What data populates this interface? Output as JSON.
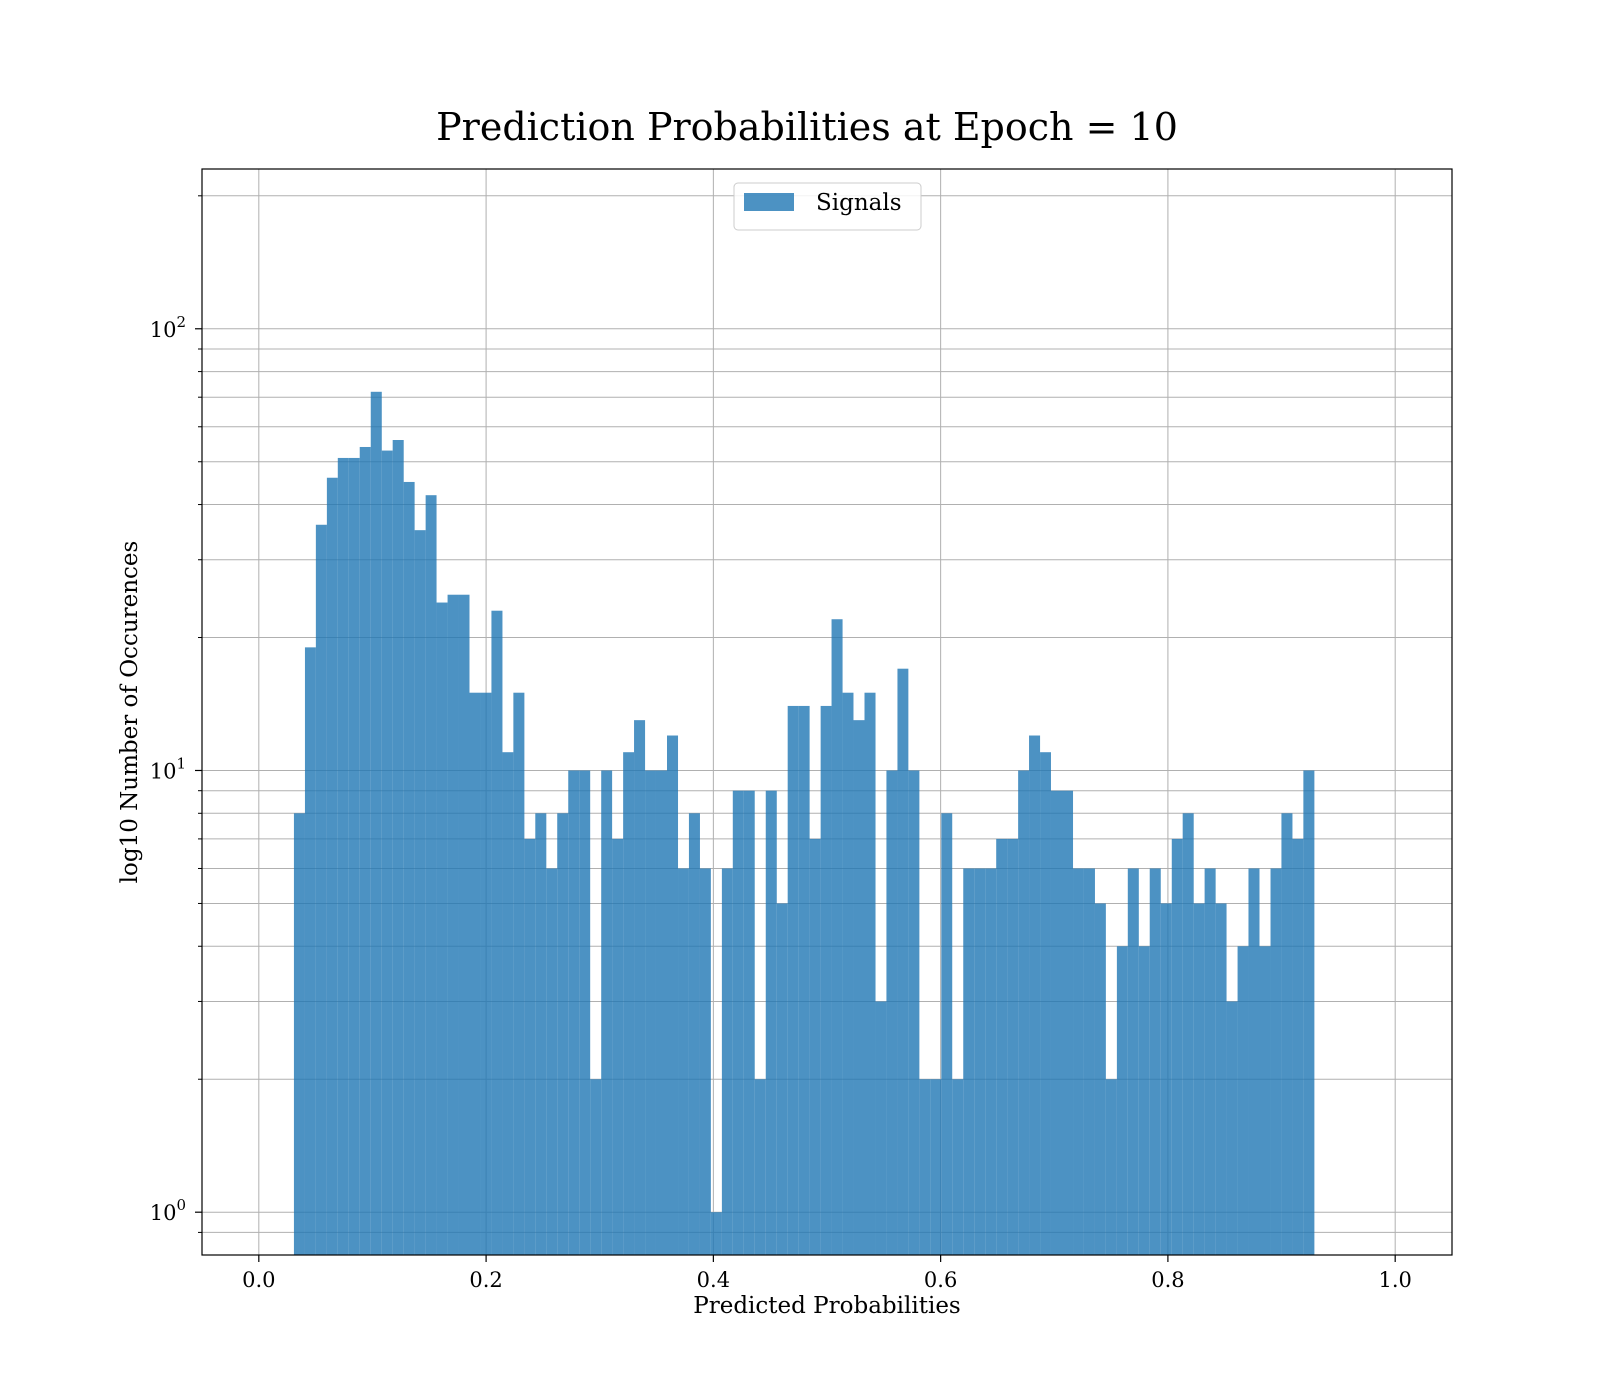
{
  "chart_data": {
    "type": "bar",
    "title": "Prediction Probabilities at Epoch = 10",
    "xlabel": "Predicted Probabilities",
    "ylabel": "log10 Number of Occurences",
    "yscale": "log",
    "xlim": [
      -0.05,
      1.05
    ],
    "ylim": [
      0.8,
      230
    ],
    "grid": true,
    "legend_position": "top-center",
    "x_ticks": [
      0.0,
      0.2,
      0.4,
      0.6,
      0.8,
      1.0
    ],
    "x_tick_labels": [
      "0.0",
      "0.2",
      "0.4",
      "0.6",
      "0.8",
      "1.0"
    ],
    "y_ticks": [
      1,
      10,
      100
    ],
    "y_tick_labels": [
      {
        "base": "10",
        "exp": "0"
      },
      {
        "base": "10",
        "exp": "1"
      },
      {
        "base": "10",
        "exp": "2"
      }
    ],
    "y_minor_ticks": [
      0.9,
      2,
      3,
      4,
      5,
      6,
      7,
      8,
      9,
      20,
      30,
      40,
      50,
      60,
      70,
      80,
      90,
      200
    ],
    "series": [
      {
        "name": "Signals",
        "color": "#1f77b4",
        "opacity": 0.8,
        "bins": [
          [
            0.0309,
            0.0406,
            8
          ],
          [
            0.0406,
            0.0502,
            19
          ],
          [
            0.0502,
            0.0599,
            36
          ],
          [
            0.0599,
            0.0695,
            46
          ],
          [
            0.0695,
            0.0792,
            51
          ],
          [
            0.0792,
            0.0888,
            51
          ],
          [
            0.0888,
            0.0985,
            54
          ],
          [
            0.0985,
            0.1082,
            72
          ],
          [
            0.1082,
            0.1178,
            53
          ],
          [
            0.1178,
            0.1275,
            56
          ],
          [
            0.1275,
            0.1371,
            45
          ],
          [
            0.1371,
            0.1468,
            35
          ],
          [
            0.1468,
            0.1564,
            42
          ],
          [
            0.1564,
            0.1661,
            24
          ],
          [
            0.1661,
            0.1757,
            25
          ],
          [
            0.1757,
            0.1854,
            25
          ],
          [
            0.1854,
            0.1951,
            15
          ],
          [
            0.1951,
            0.2047,
            15
          ],
          [
            0.2047,
            0.2144,
            23
          ],
          [
            0.2144,
            0.224,
            11
          ],
          [
            0.224,
            0.2337,
            15
          ],
          [
            0.2337,
            0.2433,
            7
          ],
          [
            0.2433,
            0.253,
            8
          ],
          [
            0.253,
            0.2626,
            6
          ],
          [
            0.2626,
            0.2723,
            8
          ],
          [
            0.2723,
            0.282,
            10
          ],
          [
            0.282,
            0.2916,
            10
          ],
          [
            0.2916,
            0.3013,
            2
          ],
          [
            0.3013,
            0.3109,
            10
          ],
          [
            0.3109,
            0.3206,
            7
          ],
          [
            0.3206,
            0.3302,
            11
          ],
          [
            0.3302,
            0.3399,
            13
          ],
          [
            0.3399,
            0.3495,
            10
          ],
          [
            0.3495,
            0.3592,
            10
          ],
          [
            0.3592,
            0.3689,
            12
          ],
          [
            0.3689,
            0.3785,
            6
          ],
          [
            0.3785,
            0.3882,
            8
          ],
          [
            0.3882,
            0.3978,
            6
          ],
          [
            0.3978,
            0.4075,
            1
          ],
          [
            0.4075,
            0.4171,
            6
          ],
          [
            0.4171,
            0.4268,
            9
          ],
          [
            0.4268,
            0.4364,
            9
          ],
          [
            0.4364,
            0.4461,
            2
          ],
          [
            0.4461,
            0.4558,
            9
          ],
          [
            0.4558,
            0.4654,
            5
          ],
          [
            0.4654,
            0.4751,
            14
          ],
          [
            0.4751,
            0.4847,
            14
          ],
          [
            0.4847,
            0.4944,
            7
          ],
          [
            0.4944,
            0.504,
            14
          ],
          [
            0.504,
            0.5137,
            22
          ],
          [
            0.5137,
            0.5233,
            15
          ],
          [
            0.5233,
            0.533,
            13
          ],
          [
            0.533,
            0.5427,
            15
          ],
          [
            0.5427,
            0.5523,
            3
          ],
          [
            0.5523,
            0.562,
            10
          ],
          [
            0.562,
            0.5716,
            17
          ],
          [
            0.5716,
            0.5813,
            10
          ],
          [
            0.5813,
            0.5909,
            2
          ],
          [
            0.5909,
            0.6006,
            2
          ],
          [
            0.6006,
            0.6102,
            8
          ],
          [
            0.6102,
            0.6199,
            2
          ],
          [
            0.6199,
            0.6296,
            6
          ],
          [
            0.6296,
            0.6392,
            6
          ],
          [
            0.6392,
            0.6489,
            6
          ],
          [
            0.6489,
            0.6585,
            7
          ],
          [
            0.6585,
            0.6682,
            7
          ],
          [
            0.6682,
            0.6778,
            10
          ],
          [
            0.6778,
            0.6875,
            12
          ],
          [
            0.6875,
            0.6971,
            11
          ],
          [
            0.6971,
            0.7068,
            9
          ],
          [
            0.7068,
            0.7165,
            9
          ],
          [
            0.7165,
            0.7261,
            6
          ],
          [
            0.7261,
            0.7358,
            6
          ],
          [
            0.7358,
            0.7454,
            5
          ],
          [
            0.7454,
            0.7551,
            2
          ],
          [
            0.7551,
            0.7647,
            4
          ],
          [
            0.7647,
            0.7744,
            6
          ],
          [
            0.7744,
            0.784,
            4
          ],
          [
            0.784,
            0.7937,
            6
          ],
          [
            0.7937,
            0.8034,
            5
          ],
          [
            0.8034,
            0.813,
            7
          ],
          [
            0.813,
            0.8227,
            8
          ],
          [
            0.8227,
            0.8323,
            5
          ],
          [
            0.8323,
            0.842,
            6
          ],
          [
            0.842,
            0.8516,
            5
          ],
          [
            0.8516,
            0.8613,
            3
          ],
          [
            0.8613,
            0.8709,
            4
          ],
          [
            0.8709,
            0.8806,
            6
          ],
          [
            0.8806,
            0.8903,
            4
          ],
          [
            0.8903,
            0.8999,
            6
          ],
          [
            0.8999,
            0.9096,
            8
          ],
          [
            0.9096,
            0.9192,
            7
          ],
          [
            0.9192,
            0.9289,
            10
          ]
        ]
      }
    ]
  }
}
